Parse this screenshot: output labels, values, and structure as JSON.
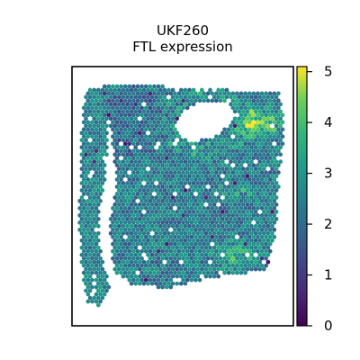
{
  "chart_data": {
    "type": "heatmap",
    "title": "UKF260",
    "subtitle": "FTL expression",
    "xlabel": "",
    "ylabel": "",
    "colormap": "viridis",
    "colorbar": {
      "vmin": 0,
      "vmax": 5.1,
      "ticks": [
        "0",
        "1",
        "2",
        "3",
        "4",
        "5"
      ],
      "tick_values": [
        0,
        1,
        2,
        3,
        4,
        5
      ]
    },
    "spot_color_range": {
      "typical_low": 1.8,
      "typical_high": 3.3,
      "hotspot_high": 4.8,
      "min_observed": 0.3
    },
    "tissue_regions": [
      {
        "name": "main-section",
        "value_mean": 2.4
      },
      {
        "name": "left-strip",
        "value_mean": 2.6
      },
      {
        "name": "upper-right-hotspot",
        "value_mean": 4.3
      },
      {
        "name": "lower-right-hotspot",
        "value_mean": 3.8
      }
    ],
    "grid": false,
    "legend": "colorbar-right"
  }
}
